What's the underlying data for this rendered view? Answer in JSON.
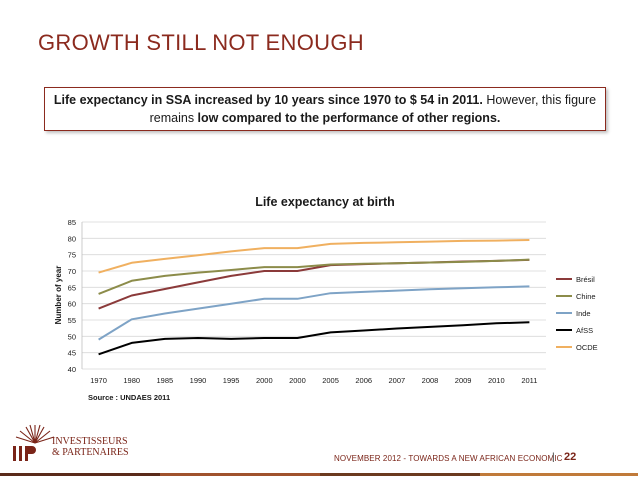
{
  "slide": {
    "title": "GROWTH STILL NOT ENOUGH",
    "callout": {
      "part1": "Life expectancy in SSA increased by 10 years since 1970 to $ 54 in 2011.",
      "part2": " However, this figure remains ",
      "part3": "low compared to the performance of other regions."
    },
    "footer": {
      "text": "NOVEMBER 2012 - TOWARDS A NEW AFRICAN ECONOMIC",
      "separator": "|",
      "page": "22"
    },
    "logo": {
      "line1": "INVESTISSEURS",
      "line2": "& PARTENAIRES",
      "mark": "I|P"
    }
  },
  "colors": {
    "title": "#8b2a1e",
    "Brésil": "#8b3a3a",
    "Chine": "#8c8c4a",
    "Inde": "#7ea3c6",
    "AfSS": "#000000",
    "OCDE": "#f0b060"
  },
  "chart_data": {
    "type": "line",
    "title": "Life expectancy at birth",
    "ylabel": "Number of year",
    "xlabel": "",
    "source": "Source : UNDAES 2011",
    "ylim": [
      40,
      85
    ],
    "yticks": [
      "40",
      "45",
      "50",
      "55",
      "60",
      "65",
      "70",
      "75",
      "80",
      "85"
    ],
    "categories": [
      "1970",
      "1980",
      "1985",
      "1990",
      "1995",
      "2000",
      "2000",
      "2005",
      "2006",
      "2007",
      "2008",
      "2009",
      "2010",
      "2011"
    ],
    "legend_position": "right",
    "series": [
      {
        "name": "Brésil",
        "values": [
          58.5,
          62.5,
          64.5,
          66.5,
          68.5,
          70.0,
          70.0,
          71.8,
          72.1,
          72.4,
          72.6,
          72.9,
          73.1,
          73.4
        ]
      },
      {
        "name": "Chine",
        "values": [
          63.0,
          67.0,
          68.5,
          69.5,
          70.3,
          71.2,
          71.2,
          72.0,
          72.2,
          72.4,
          72.6,
          72.8,
          73.1,
          73.5
        ]
      },
      {
        "name": "Inde",
        "values": [
          49.0,
          55.2,
          57.0,
          58.5,
          60.0,
          61.5,
          61.5,
          63.2,
          63.6,
          64.0,
          64.4,
          64.7,
          65.0,
          65.3
        ]
      },
      {
        "name": "AfSS",
        "values": [
          44.5,
          48.0,
          49.2,
          49.5,
          49.2,
          49.5,
          49.5,
          51.2,
          51.8,
          52.4,
          52.9,
          53.4,
          54.0,
          54.3
        ]
      },
      {
        "name": "OCDE",
        "values": [
          69.5,
          72.5,
          73.7,
          74.8,
          76.0,
          77.0,
          77.0,
          78.3,
          78.6,
          78.8,
          79.0,
          79.2,
          79.3,
          79.5
        ]
      }
    ]
  }
}
